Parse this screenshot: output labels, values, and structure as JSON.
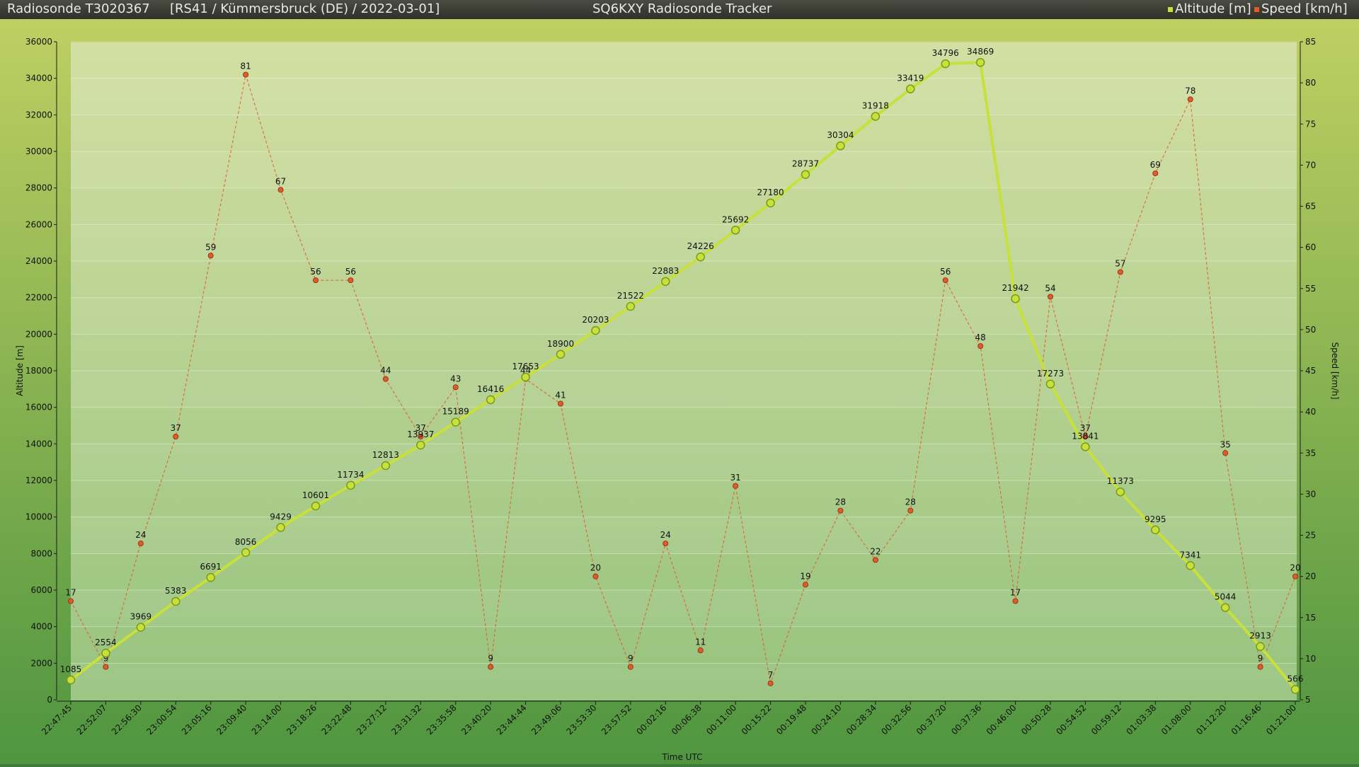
{
  "header": {
    "sonde": "Radiosonde T3020367",
    "info": "[RS41 / Kümmersbruck (DE) / 2022-03-01]",
    "title": "SQ6KXY Radiosonde Tracker",
    "legend_altitude": "Altitude [m]",
    "legend_speed": "Speed [km/h]"
  },
  "colors": {
    "altitude": "#c8e03a",
    "speed": "#e05a2a",
    "plot_top": "#d3dfa3",
    "plot_bottom": "#97c37f"
  },
  "chart_data": {
    "type": "line",
    "xlabel": "Time UTC",
    "ylabel_left": "Altitude [m]",
    "ylabel_right": "Speed [km/h]",
    "ylim_left": [
      0,
      36000
    ],
    "ylim_right": [
      5,
      85
    ],
    "yticks_left": [
      0,
      2000,
      4000,
      6000,
      8000,
      10000,
      12000,
      14000,
      16000,
      18000,
      20000,
      22000,
      24000,
      26000,
      28000,
      30000,
      32000,
      34000,
      36000
    ],
    "yticks_right": [
      5,
      10,
      15,
      20,
      25,
      30,
      35,
      40,
      45,
      50,
      55,
      60,
      65,
      70,
      75,
      80,
      85
    ],
    "categories": [
      "22:47:45",
      "22:52:07",
      "22:56:30",
      "23:00:54",
      "23:05:16",
      "23:09:40",
      "23:14:00",
      "23:18:26",
      "23:22:48",
      "23:27:12",
      "23:31:32",
      "23:35:58",
      "23:40:20",
      "23:44:44",
      "23:49:06",
      "23:53:30",
      "23:57:52",
      "00:02:16",
      "00:06:38",
      "00:11:00",
      "00:15:22",
      "00:19:48",
      "00:24:10",
      "00:28:34",
      "00:32:56",
      "00:37:20",
      "00:37:36",
      "00:46:00",
      "00:50:28",
      "00:54:52",
      "00:59:12",
      "01:03:38",
      "01:08:00",
      "01:12:20",
      "01:16:46",
      "01:21:00"
    ],
    "grid": true,
    "legend": "top-right",
    "series": [
      {
        "name": "Altitude [m]",
        "axis": "left",
        "values": [
          1085,
          2554,
          3969,
          5383,
          6691,
          8056,
          9429,
          10601,
          11734,
          12813,
          13937,
          15189,
          16416,
          17653,
          18900,
          20203,
          21522,
          22883,
          24226,
          25692,
          27180,
          28737,
          30304,
          31918,
          33419,
          34796,
          34869,
          21942,
          17273,
          13841,
          11373,
          9295,
          7341,
          5044,
          2913,
          566
        ]
      },
      {
        "name": "Speed [km/h]",
        "axis": "right",
        "values": [
          17,
          9,
          24,
          37,
          59,
          81,
          67,
          56,
          56,
          44,
          37,
          43,
          9,
          44,
          41,
          20,
          9,
          24,
          11,
          31,
          7,
          19,
          28,
          22,
          28,
          56,
          48,
          17,
          54,
          37,
          57,
          69,
          78,
          35,
          9,
          20
        ]
      }
    ]
  }
}
